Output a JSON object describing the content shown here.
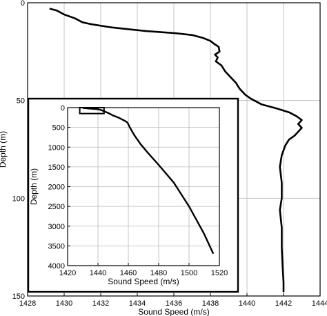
{
  "chart_data": [
    {
      "type": "line",
      "xlabel": "Sound Speed (m/s)",
      "ylabel": "Depth (m)",
      "xlim": [
        1428,
        1444
      ],
      "ylim": [
        150,
        0
      ],
      "x_ticks": [
        "1428",
        "1430",
        "1432",
        "1434",
        "1436",
        "1438",
        "1440",
        "1442",
        "1444"
      ],
      "y_ticks": [
        "0",
        "50",
        "100",
        "150"
      ],
      "grid": true,
      "series": [
        {
          "color": "#000000",
          "points": [
            [
              1429.2,
              3
            ],
            [
              1429.6,
              4
            ],
            [
              1430.0,
              6
            ],
            [
              1430.6,
              8
            ],
            [
              1431.0,
              10
            ],
            [
              1431.5,
              11
            ],
            [
              1432.5,
              12.5
            ],
            [
              1433.5,
              13.5
            ],
            [
              1434.5,
              14.5
            ],
            [
              1436.0,
              15.5
            ],
            [
              1437.0,
              16.5
            ],
            [
              1437.6,
              18
            ],
            [
              1438.0,
              19.5
            ],
            [
              1438.2,
              21
            ],
            [
              1438.45,
              22.5
            ],
            [
              1438.5,
              25
            ],
            [
              1438.25,
              26.5
            ],
            [
              1438.4,
              28
            ],
            [
              1438.3,
              30
            ],
            [
              1438.6,
              32
            ],
            [
              1438.8,
              35
            ],
            [
              1439.1,
              38
            ],
            [
              1439.4,
              41
            ],
            [
              1439.6,
              44
            ],
            [
              1439.9,
              47
            ],
            [
              1440.2,
              49
            ],
            [
              1440.8,
              52
            ],
            [
              1441.6,
              54
            ],
            [
              1442.3,
              56
            ],
            [
              1442.7,
              58
            ],
            [
              1443.0,
              60
            ],
            [
              1442.8,
              62
            ],
            [
              1443.0,
              64
            ],
            [
              1442.8,
              66
            ],
            [
              1442.6,
              68
            ],
            [
              1442.3,
              70
            ],
            [
              1442.1,
              73
            ],
            [
              1441.9,
              78
            ],
            [
              1441.8,
              84
            ],
            [
              1441.9,
              92
            ],
            [
              1441.9,
              100
            ],
            [
              1441.8,
              106
            ],
            [
              1441.9,
              115
            ],
            [
              1441.9,
              125
            ],
            [
              1441.95,
              135
            ],
            [
              1442.0,
              143
            ],
            [
              1442.0,
              148
            ]
          ]
        }
      ]
    },
    {
      "type": "line",
      "xlabel": "Sound Speed (m/s)",
      "ylabel": "Depth (m)",
      "xlim": [
        1420,
        1520
      ],
      "ylim": [
        4000,
        0
      ],
      "x_ticks": [
        "1420",
        "1440",
        "1460",
        "1480",
        "1500",
        "1520"
      ],
      "y_ticks": [
        "0",
        "500",
        "1000",
        "1500",
        "2000",
        "2500",
        "3000",
        "3500",
        "4000"
      ],
      "grid": true,
      "highlight_box": {
        "x": [
          1428,
          1444
        ],
        "y": [
          0,
          150
        ]
      },
      "series": [
        {
          "color": "#000000",
          "points": [
            [
              1430,
              10
            ],
            [
              1440,
              40
            ],
            [
              1442,
              60
            ],
            [
              1447,
              140
            ],
            [
              1450,
              200
            ],
            [
              1454,
              260
            ],
            [
              1458,
              340
            ],
            [
              1459.5,
              380
            ],
            [
              1461,
              500
            ],
            [
              1464,
              700
            ],
            [
              1468,
              920
            ],
            [
              1473,
              1150
            ],
            [
              1480,
              1450
            ],
            [
              1490,
              1900
            ],
            [
              1500,
              2500
            ],
            [
              1510,
              3200
            ],
            [
              1516,
              3700
            ]
          ]
        }
      ]
    }
  ]
}
